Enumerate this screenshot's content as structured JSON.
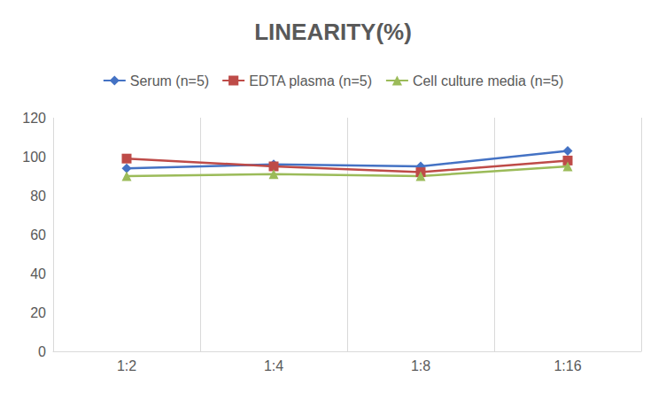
{
  "chart_data": {
    "type": "line",
    "title": "LINEARITY(%)",
    "categories": [
      "1:2",
      "1:4",
      "1:8",
      "1:16"
    ],
    "series": [
      {
        "name": "Serum (n=5)",
        "color": "#4472c4",
        "marker": "diamond",
        "values": [
          94,
          96,
          95,
          103
        ]
      },
      {
        "name": "EDTA plasma (n=5)",
        "color": "#be4b48",
        "marker": "square",
        "values": [
          99,
          95,
          92,
          98
        ]
      },
      {
        "name": "Cell culture media (n=5)",
        "color": "#9bbb59",
        "marker": "triangle",
        "values": [
          90,
          91,
          90,
          95
        ]
      }
    ],
    "ylim": [
      0,
      120
    ],
    "yticks": [
      0,
      20,
      40,
      60,
      80,
      100,
      120
    ],
    "grid": true,
    "legend": "top"
  }
}
